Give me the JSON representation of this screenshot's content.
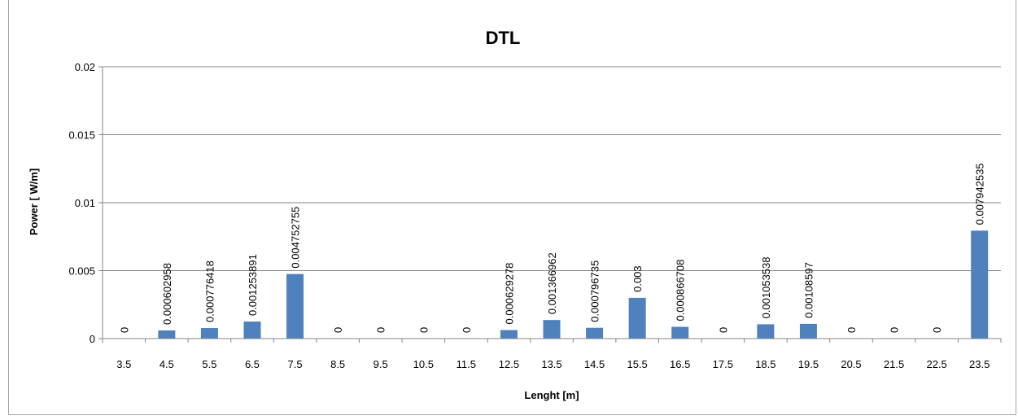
{
  "chart_data": {
    "type": "bar",
    "title": "DTL",
    "xlabel": "Lenght [m]",
    "ylabel": "Power [ W/m]",
    "ylim": [
      0,
      0.02
    ],
    "yticks": [
      "0",
      "0.005",
      "0.01",
      "0.015",
      "0.02"
    ],
    "grid": true,
    "legend": "none",
    "bar_color": "#4f81bd",
    "categories": [
      "3.5",
      "4.5",
      "5.5",
      "6.5",
      "7.5",
      "8.5",
      "9.5",
      "10.5",
      "11.5",
      "12.5",
      "13.5",
      "14.5",
      "15.5",
      "16.5",
      "17.5",
      "18.5",
      "19.5",
      "20.5",
      "21.5",
      "22.5",
      "23.5"
    ],
    "values": [
      0,
      0.000602958,
      0.000776418,
      0.001253891,
      0.004752755,
      0,
      0,
      0,
      0,
      0.000629278,
      0.001366962,
      0.000796735,
      0.003,
      0.000866708,
      0,
      0.001053538,
      0.00108597,
      0,
      0,
      0,
      0.007942535
    ],
    "data_labels": [
      "0",
      "0.000602958",
      "0.000776418",
      "0.001253891",
      "0.004752755",
      "0",
      "0",
      "0",
      "0",
      "0.000629278",
      "0.001366962",
      "0.000796735",
      "0.003",
      "0.000866708",
      "0",
      "0.001053538",
      "0.00108597",
      "0",
      "0",
      "0",
      "0.007942535"
    ]
  }
}
